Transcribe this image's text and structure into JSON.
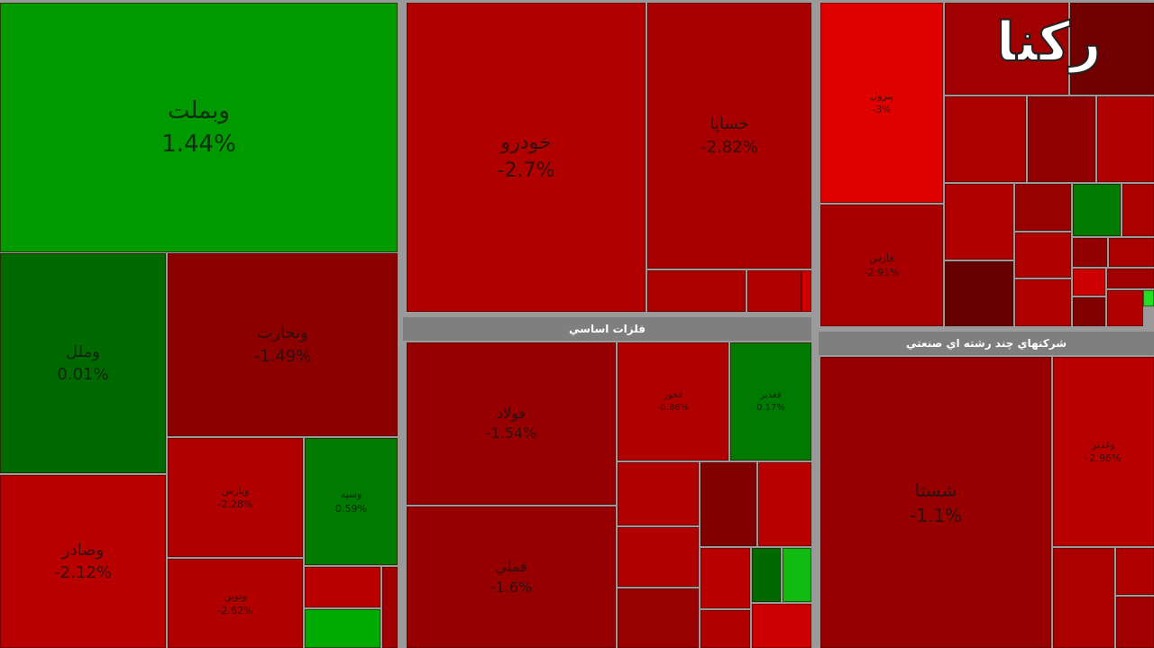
{
  "watermark": "رکنا",
  "panels": [
    {
      "tiles": [
        {
          "label": "وبملت",
          "change": "1.44%"
        },
        {
          "label": "وملل",
          "change": "0.01%"
        },
        {
          "label": "وتجارت",
          "change": "-1.49%"
        },
        {
          "label": "وصادر",
          "change": "-2.12%"
        },
        {
          "label": "وپارس",
          "change": "-2.28%"
        },
        {
          "label": "ونوين",
          "change": "-2.62%"
        },
        {
          "label": "وسپه",
          "change": "0.59%"
        }
      ]
    },
    {
      "tiles": [
        {
          "label": "خودرو",
          "change": "-2.7%"
        },
        {
          "label": "خساپا",
          "change": "-2.82%"
        }
      ]
    },
    {
      "header": "فلزات اساسي",
      "tiles": [
        {
          "label": "فولاد",
          "change": "-1.54%"
        },
        {
          "label": "فملي",
          "change": "-1.6%"
        },
        {
          "label": "فخوز",
          "change": "-0.86%"
        },
        {
          "label": "فغدير",
          "change": "0.17%"
        }
      ]
    },
    {
      "tiles": [
        {
          "label": "پترول",
          "change": "-3%"
        },
        {
          "label": "فارس",
          "change": "-2.91%"
        }
      ]
    },
    {
      "header": "شرکتهاي چند رشته اي صنعتي",
      "tiles": [
        {
          "label": "شستا",
          "change": "-1.1%"
        },
        {
          "label": "وغدير",
          "change": "-2.96%"
        }
      ]
    }
  ]
}
